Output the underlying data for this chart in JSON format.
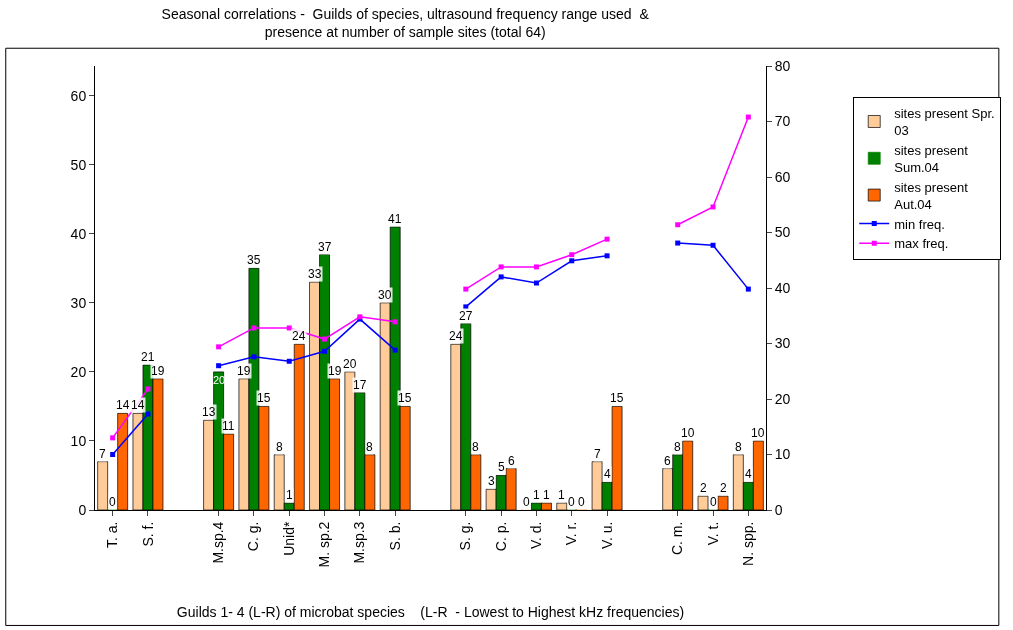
{
  "chart_data": {
    "type": "bar",
    "title": "Seasonal correlations -  Guilds of species, ultrasound frequency range used  &\npresence at number of sample sites (total 64)",
    "xlabel": "Guilds 1- 4 (L-R) of microbat species    (L-R  - Lowest to Highest kHz frequencies)",
    "categories": [
      "T. a.",
      "S. f.",
      null,
      "M.sp.4",
      "C. g.",
      "Unid*",
      "M. sp.2",
      "M.sp.3",
      "S. b.",
      null,
      "S. g.",
      "C. p.",
      "V. d.",
      "V. r.",
      "V. u.",
      null,
      "C. m.",
      "V. t.",
      "N. spp."
    ],
    "series": [
      {
        "name": "sites present Spr. 03",
        "color": "#ffcc99",
        "values": [
          7,
          14,
          null,
          13,
          19,
          8,
          33,
          20,
          30,
          null,
          24,
          3,
          0,
          1,
          7,
          null,
          6,
          2,
          8
        ],
        "value_labels": [
          "7",
          "14",
          null,
          "13",
          "19",
          "8",
          "33",
          "20",
          "30",
          null,
          "24",
          "3",
          "0",
          "1",
          "7",
          null,
          "6",
          "2",
          "8"
        ]
      },
      {
        "name": "sites present Sum.04",
        "color": "#008000",
        "values": [
          0,
          21,
          null,
          20,
          35,
          1,
          37,
          17,
          41,
          null,
          27,
          5,
          1,
          0,
          4,
          null,
          8,
          0,
          4
        ],
        "value_labels": [
          "0",
          "21",
          null,
          "20",
          "35",
          "1",
          "37",
          "17",
          "41",
          null,
          "27",
          "5",
          "1",
          "0",
          "4",
          null,
          "8",
          "0",
          "4"
        ]
      },
      {
        "name": "sites present Aut.04",
        "color": "#ff6600",
        "values": [
          14,
          19,
          null,
          11,
          15,
          24,
          19,
          8,
          15,
          null,
          8,
          6,
          1,
          0,
          15,
          null,
          10,
          2,
          10
        ],
        "value_labels": [
          "14",
          "19",
          null,
          "11",
          "15",
          "24",
          "19",
          "8",
          "15",
          null,
          "8",
          "6",
          "1",
          "0",
          "15",
          null,
          "10",
          "2",
          "10"
        ]
      },
      {
        "name": "min freq.",
        "type": "line",
        "axis": "y2",
        "color": "#0000ff",
        "values": [
          10,
          17.3,
          null,
          26,
          27.6,
          26.8,
          28.6,
          34.4,
          28.8,
          null,
          36.6,
          42,
          40.9,
          44.9,
          45.8,
          null,
          48.1,
          47.7,
          39.8
        ]
      },
      {
        "name": "max freq.",
        "type": "line",
        "axis": "y2",
        "color": "#ff00ff",
        "values": [
          13,
          21.8,
          null,
          29.4,
          32.8,
          32.8,
          30.8,
          34.8,
          33.9,
          null,
          39.8,
          43.8,
          43.8,
          46,
          48.8,
          null,
          51.4,
          54.6,
          70.8
        ]
      }
    ],
    "ylim": [
      0,
      64.3
    ],
    "yticks": [
      0,
      10,
      20,
      30,
      40,
      50,
      60
    ],
    "y2lim": [
      0,
      80
    ],
    "y2ticks": [
      0,
      10,
      20,
      30,
      40,
      50,
      60,
      70,
      80
    ],
    "grid": false,
    "legend": "right",
    "marker": "square",
    "line_style": "solid"
  }
}
